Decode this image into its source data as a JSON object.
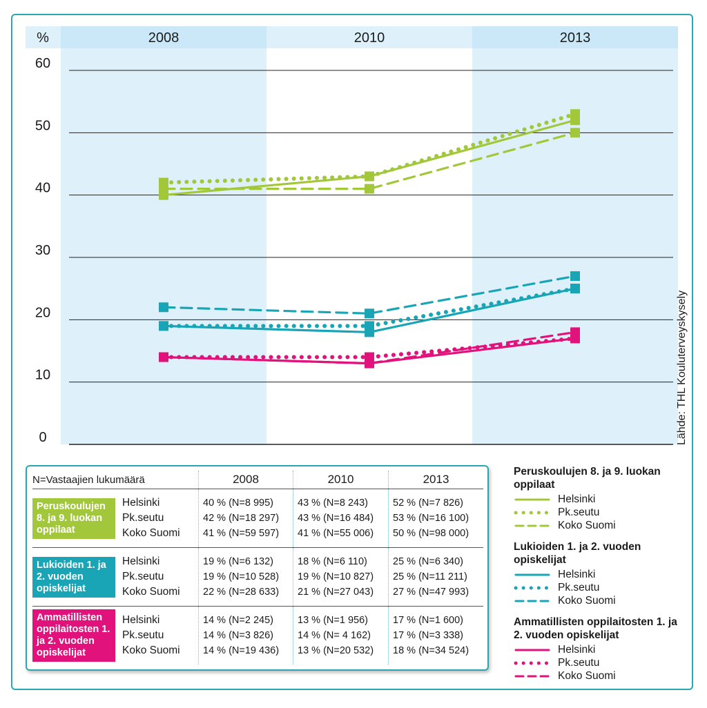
{
  "chart_data": {
    "type": "line",
    "unit_label": "%",
    "categories": [
      "2008",
      "2010",
      "2013"
    ],
    "yticks": [
      "60",
      "50",
      "40",
      "30",
      "20",
      "10",
      "0"
    ],
    "ylim": [
      0,
      60
    ],
    "source": "Lähde: THL Kouluterveyskysely",
    "groups": [
      {
        "name": "Peruskoulujen 8. ja 9. luokan oppilaat",
        "color": "#a3c73b",
        "series": [
          {
            "name": "Helsinki",
            "style": "solid",
            "values": [
              40,
              43,
              52
            ]
          },
          {
            "name": "Pk.seutu",
            "style": "dotted",
            "values": [
              42,
              43,
              53
            ]
          },
          {
            "name": "Koko Suomi",
            "style": "dashed",
            "values": [
              41,
              41,
              50
            ]
          }
        ]
      },
      {
        "name": "Lukioiden 1. ja 2. vuoden opiskelijat",
        "color": "#19a5b5",
        "series": [
          {
            "name": "Helsinki",
            "style": "solid",
            "values": [
              19,
              18,
              25
            ]
          },
          {
            "name": "Pk.seutu",
            "style": "dotted",
            "values": [
              19,
              19,
              25
            ]
          },
          {
            "name": "Koko Suomi",
            "style": "dashed",
            "values": [
              22,
              21,
              27
            ]
          }
        ]
      },
      {
        "name": "Ammatillisten oppilaitosten 1. ja 2. vuoden opiskelijat",
        "color": "#e2127c",
        "series": [
          {
            "name": "Helsinki",
            "style": "solid",
            "values": [
              14,
              13,
              17
            ]
          },
          {
            "name": "Pk.seutu",
            "style": "dotted",
            "values": [
              14,
              14,
              17
            ]
          },
          {
            "name": "Koko Suomi",
            "style": "dashed",
            "values": [
              14,
              13,
              18
            ]
          }
        ]
      }
    ]
  },
  "table": {
    "caption": "N=Vastaajien lukumäärä",
    "years": [
      "2008",
      "2010",
      "2013"
    ],
    "groups": [
      {
        "label": "Peruskoulujen 8. ja 9. luokan oppilaat",
        "regions": [
          "Helsinki",
          "Pk.seutu",
          "Koko Suomi"
        ],
        "cells": [
          [
            "40 % (N=8 995)",
            "43 % (N=8 243)",
            "52 % (N=7 826)"
          ],
          [
            "42 % (N=18 297)",
            "43 % (N=16 484)",
            "53 % (N=16 100)"
          ],
          [
            "41 % (N=59 597)",
            "41 % (N=55 006)",
            "50 % (N=98 000)"
          ]
        ]
      },
      {
        "label": "Lukioiden 1. ja 2. vuoden opiskelijat",
        "regions": [
          "Helsinki",
          "Pk.seutu",
          "Koko Suomi"
        ],
        "cells": [
          [
            "19 % (N=6 132)",
            "18 % (N=6 110)",
            "25 % (N=6 340)"
          ],
          [
            "19 % (N=10 528)",
            "19 % (N=10 827)",
            "25 % (N=11 211)"
          ],
          [
            "22 % (N=28 633)",
            "21 % (N=27 043)",
            "27 % (N=47 993)"
          ]
        ]
      },
      {
        "label": "Ammatillisten oppilaitosten 1. ja 2. vuoden opiskelijat",
        "regions": [
          "Helsinki",
          "Pk.seutu",
          "Koko Suomi"
        ],
        "cells": [
          [
            "14 % (N=2 245)",
            "13 % (N=1 956)",
            "17 % (N=1 600)"
          ],
          [
            "14 % (N=3 826)",
            "14 % (N= 4 162)",
            "17 % (N=3 338)"
          ],
          [
            "14 % (N=19 436)",
            "13 % (N=20 532)",
            "18 % (N=34 524)"
          ]
        ]
      }
    ]
  },
  "legend": {
    "groups": [
      {
        "title": "Peruskoulujen 8. ja 9. luokan oppilaat",
        "color": "#a3c73b",
        "items": [
          {
            "label": "Helsinki",
            "style": "solid"
          },
          {
            "label": "Pk.seutu",
            "style": "dotted"
          },
          {
            "label": "Koko Suomi",
            "style": "dashed"
          }
        ]
      },
      {
        "title": "Lukioiden 1. ja 2. vuoden opiskelijat",
        "color": "#19a5b5",
        "items": [
          {
            "label": "Helsinki",
            "style": "solid"
          },
          {
            "label": "Pk.seutu",
            "style": "dotted"
          },
          {
            "label": "Koko Suomi",
            "style": "dashed"
          }
        ]
      },
      {
        "title": "Ammatillisten oppilaitosten 1. ja 2. vuoden opiskelijat",
        "color": "#e2127c",
        "items": [
          {
            "label": "Helsinki",
            "style": "solid"
          },
          {
            "label": "Pk.seutu",
            "style": "dotted"
          },
          {
            "label": "Koko Suomi",
            "style": "dashed"
          }
        ]
      }
    ]
  },
  "colors": {
    "frame": "#2aa6b2",
    "band": "#def1fb",
    "band_header": "#cbe8f8"
  }
}
